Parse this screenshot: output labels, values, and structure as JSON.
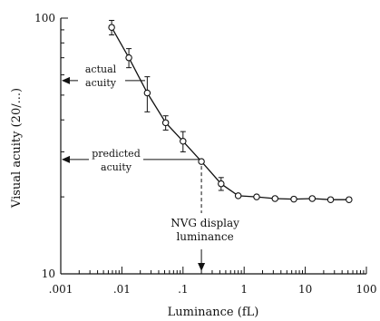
{
  "chart_data": {
    "type": "line",
    "xscale": "log",
    "yscale": "log",
    "xlim": [
      0.001,
      100
    ],
    "ylim": [
      10,
      100
    ],
    "xlabel": "Luminance (fL)",
    "ylabel": "Visual acuity (20/...)",
    "xticks": [
      {
        "value": 0.001,
        "label": ".001"
      },
      {
        "value": 0.01,
        "label": ".01"
      },
      {
        "value": 0.1,
        "label": ".1"
      },
      {
        "value": 1,
        "label": "1"
      },
      {
        "value": 10,
        "label": "10"
      },
      {
        "value": 100,
        "label": "100"
      }
    ],
    "yticks": [
      {
        "value": 10,
        "label": "10"
      },
      {
        "value": 100,
        "label": "100"
      }
    ],
    "series": [
      {
        "x": [
          0.0068,
          0.013,
          0.026,
          0.052,
          0.1,
          0.2,
          0.42,
          0.8,
          1.6,
          3.2,
          6.5,
          13,
          26,
          52
        ],
        "y": [
          92,
          70,
          51,
          39,
          33,
          27.5,
          22.5,
          20.2,
          20.0,
          19.7,
          19.6,
          19.7,
          19.5,
          19.5
        ],
        "err": [
          6,
          6,
          8,
          2.5,
          3,
          0,
          1.3,
          0,
          0,
          0,
          0,
          0,
          0,
          0
        ]
      }
    ],
    "annotations": [
      {
        "id": "actual",
        "lines": [
          "actual",
          "acuity"
        ],
        "at_y": 57
      },
      {
        "id": "predicted",
        "lines": [
          "predicted",
          "acuity"
        ],
        "at_y": 28,
        "at_x": 0.2
      },
      {
        "id": "nvg",
        "lines": [
          "NVG display",
          "luminance"
        ],
        "at_x": 0.2
      }
    ]
  }
}
